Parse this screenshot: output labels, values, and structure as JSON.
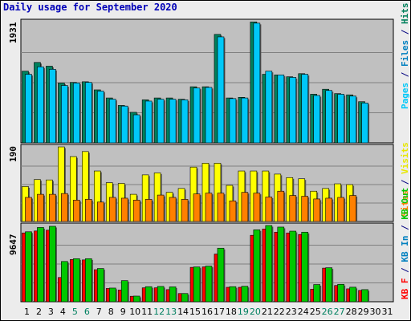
{
  "chart_data": {
    "type": "bar",
    "title": "Daily usage for September 2020",
    "categories": [
      "1",
      "2",
      "3",
      "4",
      "5",
      "6",
      "7",
      "8",
      "9",
      "10",
      "11",
      "12",
      "13",
      "14",
      "15",
      "16",
      "17",
      "18",
      "19",
      "20",
      "21",
      "22",
      "23",
      "24",
      "25",
      "26",
      "27",
      "28",
      "29",
      "30",
      "31"
    ],
    "weekend_days": [
      "5",
      "6",
      "12",
      "13",
      "19",
      "20",
      "26",
      "27"
    ],
    "panels": [
      {
        "id": "hits-files-pages",
        "max_label": "1931",
        "ylim": [
          0,
          1931
        ],
        "legend": [
          "Pages",
          "Files",
          "Hits"
        ],
        "series": [
          {
            "name": "Hits",
            "color": "#00805c",
            "values": [
              1150,
              1290,
              1230,
              960,
              970,
              980,
              850,
              720,
              600,
              490,
              690,
              720,
              720,
              700,
              900,
              900,
              1740,
              720,
              730,
              1940,
              1100,
              1090,
              1060,
              1110,
              780,
              860,
              790,
              770,
              660,
              0,
              0
            ]
          },
          {
            "name": "Files",
            "color": "#00c8f8",
            "values": [
              1100,
              1220,
              1180,
              920,
              960,
              970,
              830,
              700,
              590,
              450,
              670,
              700,
              700,
              690,
              880,
              890,
              1700,
              710,
              720,
              1920,
              1150,
              1090,
              1050,
              1100,
              760,
              840,
              780,
              750,
              640,
              0,
              0
            ]
          }
        ]
      },
      {
        "id": "visits-sites",
        "max_label": "190",
        "ylim": [
          0,
          190
        ],
        "legend": [
          "Sites",
          "Visits"
        ],
        "series": [
          {
            "name": "Visits",
            "color": "#ffff00",
            "values": [
              90,
              108,
              107,
              192,
              167,
              180,
              130,
              100,
              98,
              70,
              120,
              125,
              75,
              85,
              140,
              150,
              150,
              93,
              130,
              130,
              130,
              122,
              113,
              110,
              78,
              85,
              97,
              95,
              0,
              0,
              0
            ]
          },
          {
            "name": "Sites",
            "color": "#ff8000",
            "values": [
              62,
              70,
              70,
              72,
              55,
              57,
              50,
              62,
              60,
              55,
              57,
              68,
              62,
              57,
              71,
              73,
              73,
              53,
              75,
              73,
              63,
              78,
              67,
              65,
              58,
              60,
              62,
              67,
              0,
              0,
              0
            ]
          }
        ]
      },
      {
        "id": "kbytes",
        "max_label": "9647",
        "ylim": [
          0,
          9647
        ],
        "legend": [
          "KB F",
          "KB In",
          "KB Out"
        ],
        "series": [
          {
            "name": "KB F",
            "color": "#ff0000",
            "values": [
              8800,
              9050,
              9150,
              3100,
              5400,
              5350,
              4100,
              1700,
              1500,
              700,
              1780,
              1780,
              1550,
              1050,
              4400,
              4460,
              6100,
              1850,
              1850,
              8500,
              9300,
              8900,
              8800,
              8600,
              1600,
              4300,
              2080,
              1650,
              1450,
              0,
              0
            ]
          },
          {
            "name": "KB Out",
            "color": "#00c800",
            "values": [
              8950,
              9500,
              9650,
              5150,
              5500,
              5500,
              4250,
              1750,
              2700,
              720,
              1930,
              1960,
              1900,
              1050,
              4450,
              4560,
              6850,
              1930,
              1980,
              9200,
              9750,
              9550,
              9030,
              8900,
              2200,
              4350,
              2230,
              1860,
              1550,
              0,
              0
            ]
          }
        ]
      }
    ]
  }
}
